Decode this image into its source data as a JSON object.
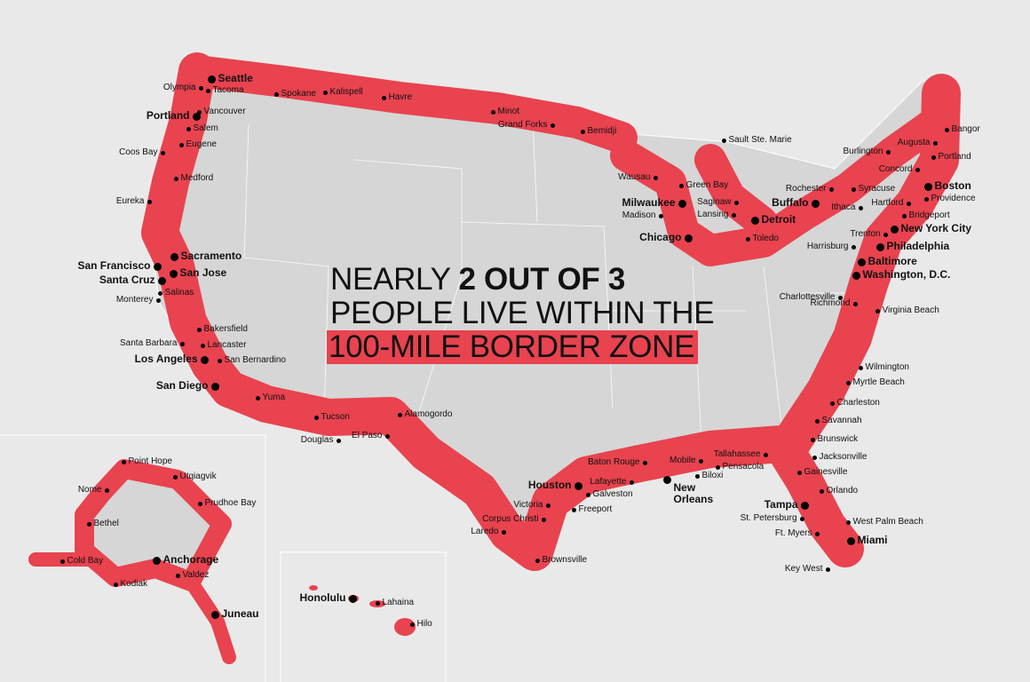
{
  "headline": {
    "line1_prefix": "NEARLY ",
    "line1_bold": "2 OUT OF 3",
    "line2": "PEOPLE LIVE WITHIN THE",
    "line3_highlight": "100-MILE BORDER ZONE"
  },
  "colors": {
    "zone": "#e8434f",
    "land": "#d6d6d6",
    "water": "#e9e9e9",
    "borders": "#ffffff"
  },
  "cities": [
    "Seattle",
    "Olympia",
    "Tacoma",
    "Spokane",
    "Kalispell",
    "Havre",
    "Minot",
    "Grand Forks",
    "Bemidji",
    "Portland",
    "Vancouver",
    "Salem",
    "Eugene",
    "Coos Bay",
    "Medford",
    "Eureka",
    "Sacramento",
    "San Francisco",
    "San Jose",
    "Santa Cruz",
    "Salinas",
    "Monterey",
    "Bakersfield",
    "Santa Barbara",
    "Lancaster",
    "Los Angeles",
    "San Bernardino",
    "San Diego",
    "Yuma",
    "Tucson",
    "Douglas",
    "El Paso",
    "Alamogordo",
    "Sault Ste. Marie",
    "Wausau",
    "Green Bay",
    "Milwaukee",
    "Madison",
    "Saginaw",
    "Lansing",
    "Detroit",
    "Chicago",
    "Toledo",
    "Rochester",
    "Buffalo",
    "Syracuse",
    "Ithaca",
    "Burlington",
    "Augusta",
    "Bangor",
    "Portland",
    "Concord",
    "Boston",
    "Providence",
    "Hartford",
    "Bridgeport",
    "New York City",
    "Trenton",
    "Harrisburg",
    "Philadelphia",
    "Baltimore",
    "Washington, D.C.",
    "Charlottesville",
    "Richmond",
    "Virginia Beach",
    "Wilmington",
    "Myrtle Beach",
    "Charleston",
    "Savannah",
    "Brunswick",
    "Jacksonville",
    "Gainesville",
    "Tallahassee",
    "Orlando",
    "Tampa",
    "St. Petersburg",
    "West Palm Beach",
    "Ft. Myers",
    "Miami",
    "Key West",
    "Mobile",
    "Pensacola",
    "Biloxi",
    "Baton Rouge",
    "New Orleans",
    "Lafayette",
    "Houston",
    "Galveston",
    "Freeport",
    "Victoria",
    "Corpus Christi",
    "Laredo",
    "Brownsville",
    "Point Hope",
    "Utqiagvik",
    "Nome",
    "Prudhoe Bay",
    "Bethel",
    "Cold Bay",
    "Anchorage",
    "Kodiak",
    "Valdez",
    "Juneau",
    "Honolulu",
    "Lahaina",
    "Hilo"
  ]
}
